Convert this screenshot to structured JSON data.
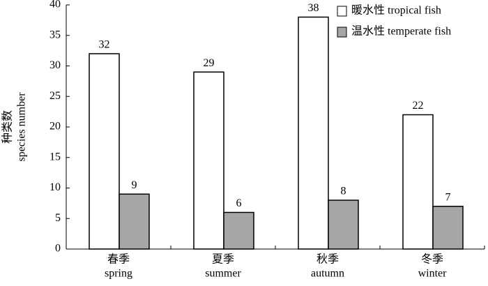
{
  "chart_data": {
    "type": "bar",
    "ylabel": [
      "种类数",
      "species number"
    ],
    "categories": [
      [
        "春季",
        "spring"
      ],
      [
        "夏季",
        "summer"
      ],
      [
        "秋季",
        "autumn"
      ],
      [
        "冬季",
        "winter"
      ]
    ],
    "series": [
      {
        "name": "暖水性 tropical fish",
        "color": "#ffffff",
        "values": [
          32,
          29,
          38,
          22
        ]
      },
      {
        "name": "温水性 temperate fish",
        "color": "#a6a6a6",
        "values": [
          9,
          6,
          8,
          7
        ]
      }
    ],
    "ylim": [
      0,
      40
    ],
    "yticks": [
      0,
      5,
      10,
      15,
      20,
      25,
      30,
      35,
      40
    ],
    "legend": "upper-right"
  }
}
